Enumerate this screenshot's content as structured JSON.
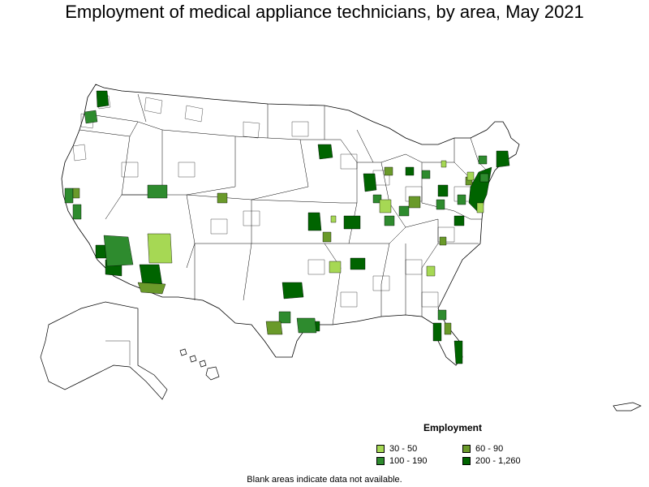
{
  "title": "Employment of medical appliance technicians, by area, May 2021",
  "legend": {
    "title": "Employment",
    "items": [
      {
        "label": "30 - 50",
        "color": "#a6d854"
      },
      {
        "label": "60 - 90",
        "color": "#6a9a2a"
      },
      {
        "label": "100 - 190",
        "color": "#2e8b2e"
      },
      {
        "label": "200 - 1,260",
        "color": "#006400"
      }
    ]
  },
  "footnote": "Blank areas indicate data not available."
}
